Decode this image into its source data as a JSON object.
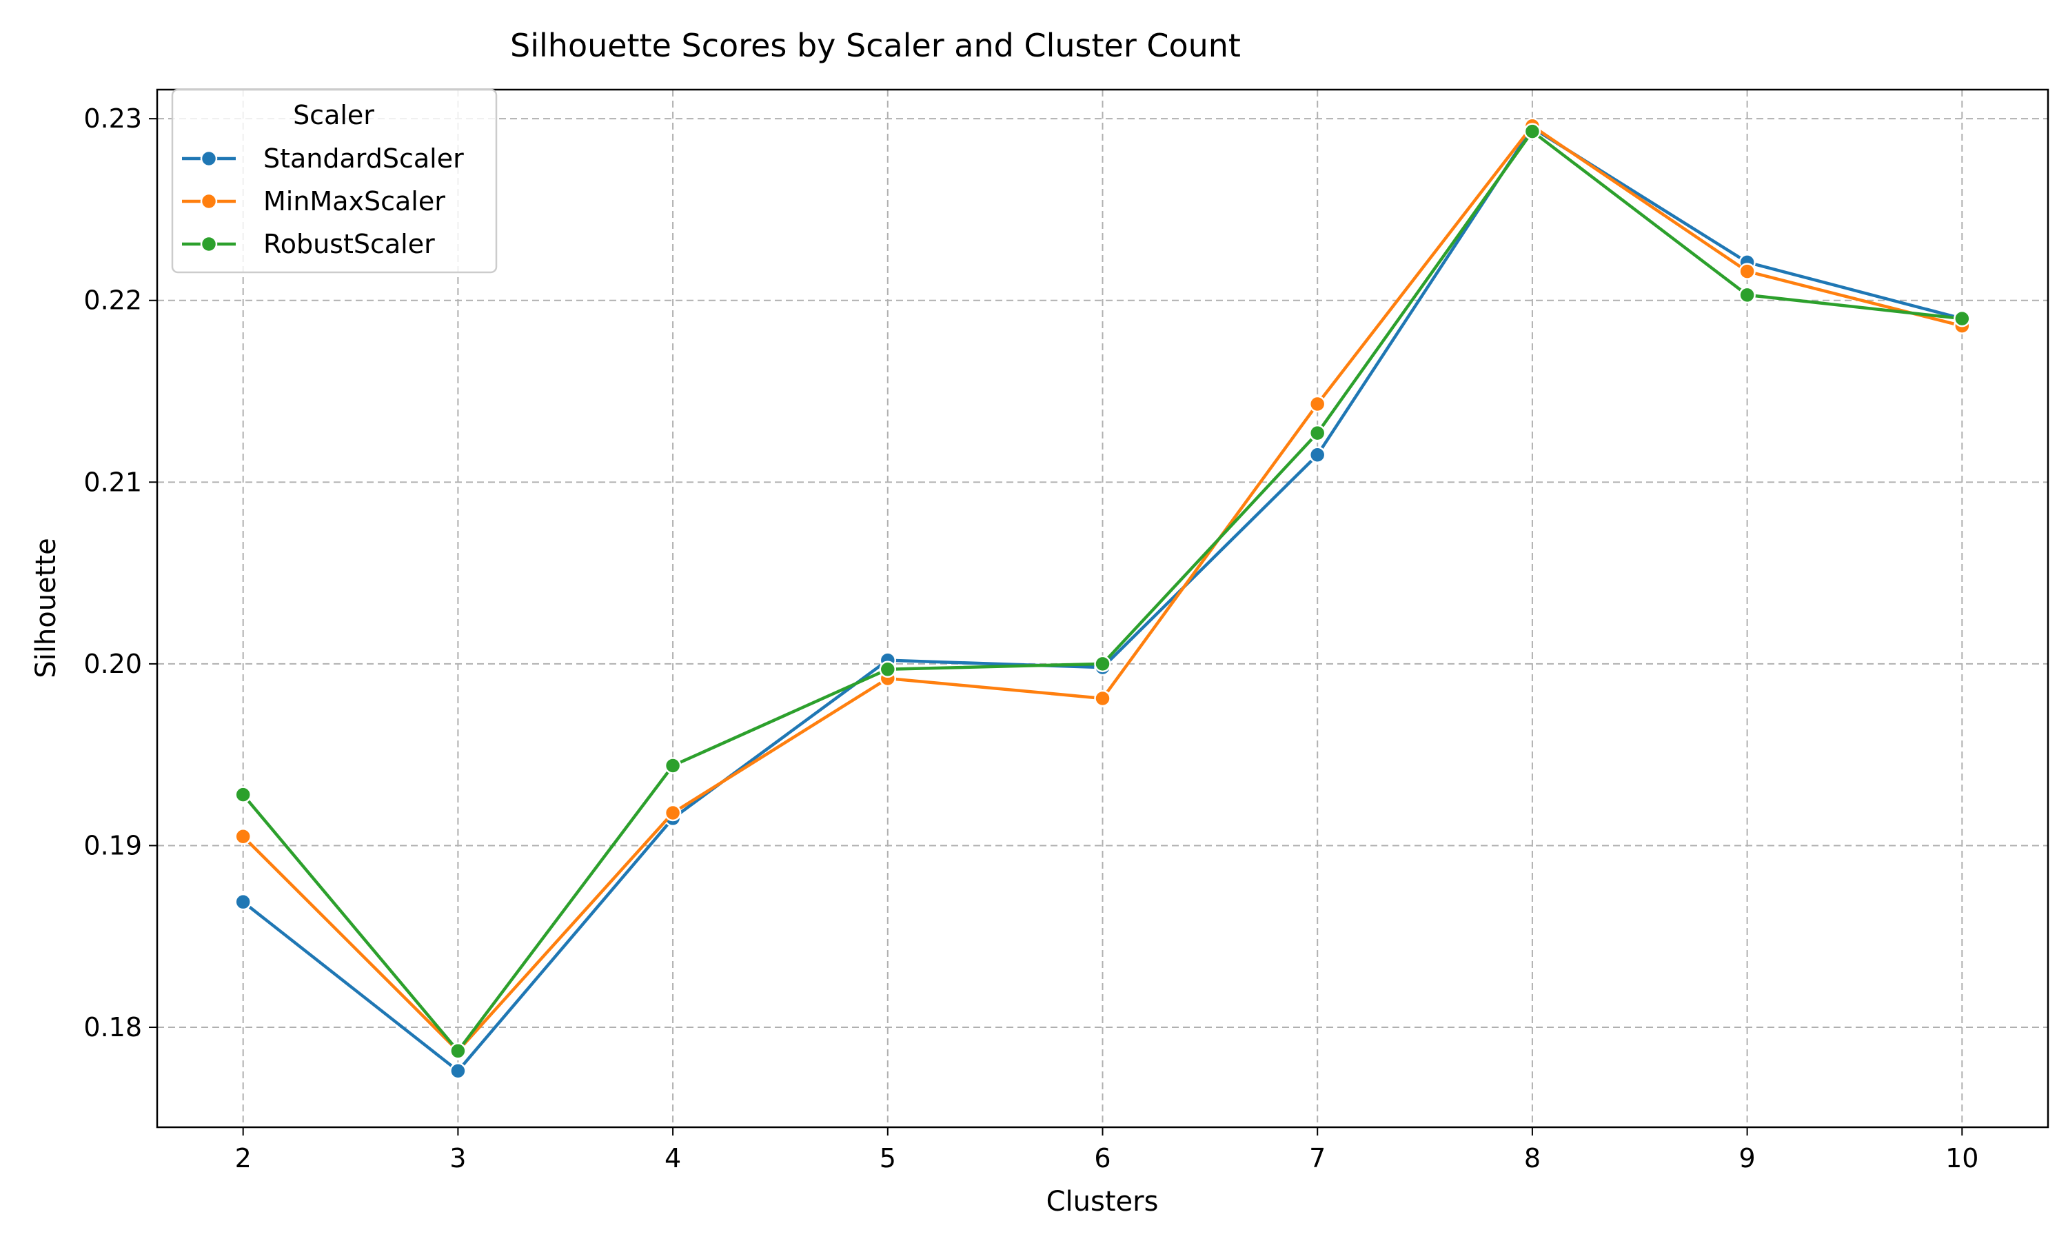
{
  "chart_data": {
    "type": "line",
    "title": "Silhouette Scores by Scaler and Cluster Count",
    "xlabel": "Clusters",
    "ylabel": "Silhouette",
    "x": [
      2,
      3,
      4,
      5,
      6,
      7,
      8,
      9,
      10
    ],
    "xticks": [
      "2",
      "3",
      "4",
      "5",
      "6",
      "7",
      "8",
      "9",
      "10"
    ],
    "yticks": [
      "0.18",
      "0.19",
      "0.20",
      "0.21",
      "0.22",
      "0.23"
    ],
    "ylim": [
      0.1745,
      0.2316
    ],
    "xlim": [
      1.6,
      10.4
    ],
    "grid": true,
    "legend": {
      "title": "Scaler",
      "placement": "top-left"
    },
    "series": [
      {
        "name": "StandardScaler",
        "color": "#1f77b4",
        "values": [
          0.1869,
          0.1776,
          0.1915,
          0.2002,
          0.1998,
          0.2115,
          0.2295,
          0.2221,
          0.219
        ]
      },
      {
        "name": "MinMaxScaler",
        "color": "#ff7f0e",
        "values": [
          0.1905,
          0.1787,
          0.1918,
          0.1992,
          0.1981,
          0.2143,
          0.2296,
          0.2216,
          0.2186
        ]
      },
      {
        "name": "RobustScaler",
        "color": "#2ca02c",
        "values": [
          0.1928,
          0.1787,
          0.1944,
          0.1997,
          0.2,
          0.2127,
          0.2293,
          0.2203,
          0.219
        ]
      }
    ]
  }
}
